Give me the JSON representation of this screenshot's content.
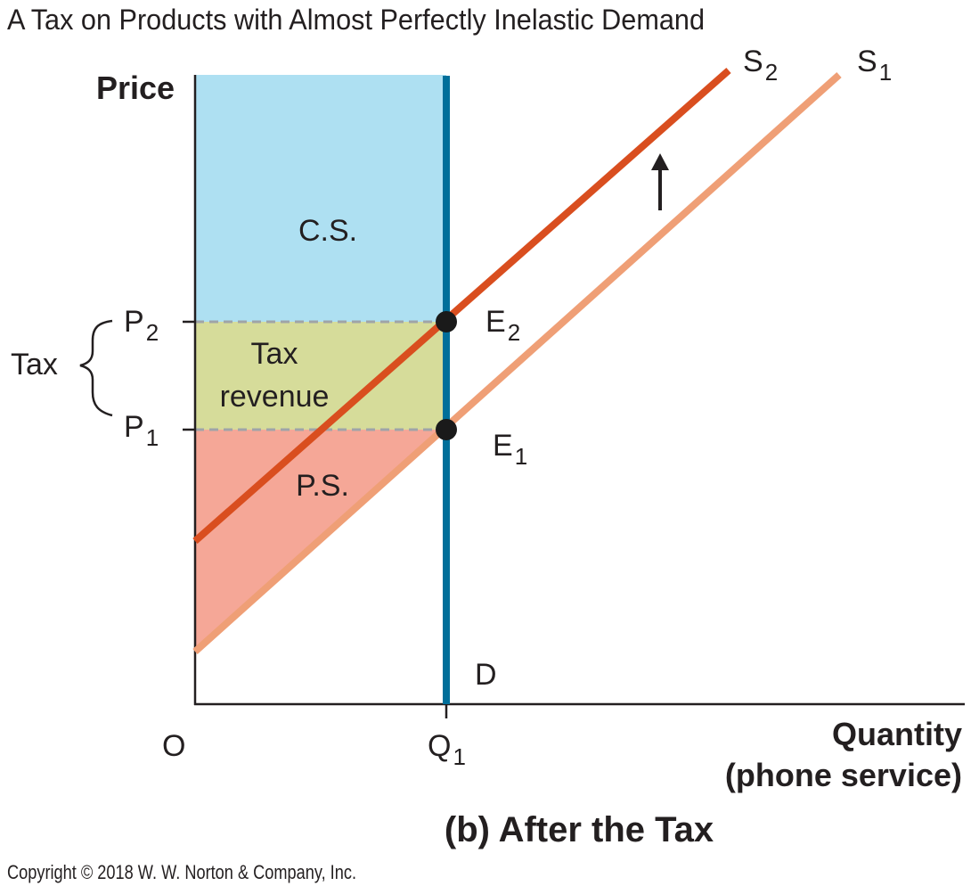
{
  "title": "A Tax on Products with Almost Perfectly Inelastic Demand",
  "subtitle": "(b) After the Tax",
  "copyright": "Copyright © 2018 W. W. Norton & Company, Inc.",
  "axes": {
    "y_label": "Price",
    "x_label_line1": "Quantity",
    "x_label_line2": "(phone service)",
    "origin": "O"
  },
  "prices": {
    "p2": {
      "main": "P",
      "sub": "2"
    },
    "p1": {
      "main": "P",
      "sub": "1"
    }
  },
  "quantity": {
    "main": "Q",
    "sub": "1"
  },
  "tax_bracket_label": "Tax",
  "areas": {
    "cs": "C.S.",
    "tax_revenue_line1": "Tax",
    "tax_revenue_line2": "revenue",
    "ps": "P.S."
  },
  "curves": {
    "s2": {
      "main": "S",
      "sub": "2",
      "color": "#d94e1f"
    },
    "s1": {
      "main": "S",
      "sub": "1",
      "color": "#ef9f76"
    },
    "demand": {
      "label": "D",
      "color": "#006f9a"
    }
  },
  "equilibria": {
    "e2": {
      "main": "E",
      "sub": "2"
    },
    "e1": {
      "main": "E",
      "sub": "1"
    }
  },
  "colors": {
    "consumer_surplus": "#aee0f2",
    "tax_revenue": "#d6dc9a",
    "producer_surplus": "#f5a797",
    "dashed_line": "#9fa4a8",
    "point": "#1a1a1a"
  }
}
